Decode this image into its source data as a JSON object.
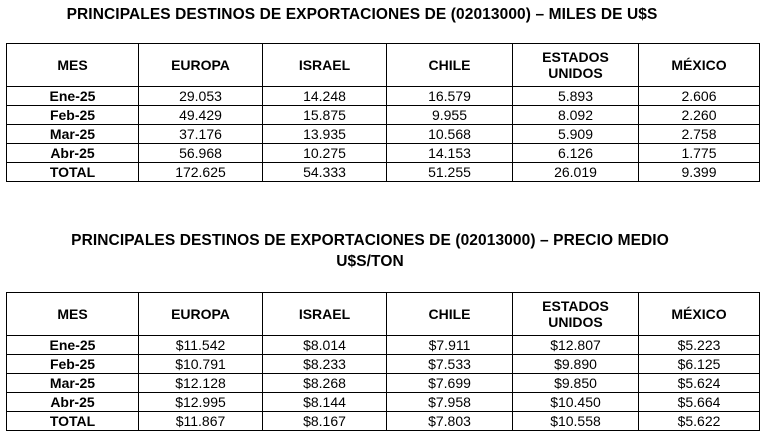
{
  "table1": {
    "title": "PRINCIPALES DESTINOS DE EXPORTACIONES DE (02013000) – MILES DE U$S",
    "headers": [
      "MES",
      "EUROPA",
      "ISRAEL",
      "CHILE",
      "ESTADOS UNIDOS",
      "MÉXICO"
    ],
    "rows": [
      [
        "Ene-25",
        "29.053",
        "14.248",
        "16.579",
        "5.893",
        "2.606"
      ],
      [
        "Feb-25",
        "49.429",
        "15.875",
        "9.955",
        "8.092",
        "2.260"
      ],
      [
        "Mar-25",
        "37.176",
        "13.935",
        "10.568",
        "5.909",
        "2.758"
      ],
      [
        "Abr-25",
        "56.968",
        "10.275",
        "14.153",
        "6.126",
        "1.775"
      ],
      [
        "TOTAL",
        "172.625",
        "54.333",
        "51.255",
        "26.019",
        "9.399"
      ]
    ]
  },
  "table2": {
    "title_line1": "PRINCIPALES DESTINOS DE EXPORTACIONES DE (02013000) – PRECIO MEDIO",
    "title_line2": "U$S/TON",
    "headers": [
      "MES",
      "EUROPA",
      "ISRAEL",
      "CHILE",
      "ESTADOS UNIDOS",
      "MÉXICO"
    ],
    "rows": [
      [
        "Ene-25",
        "$11.542",
        "$8.014",
        "$7.911",
        "$12.807",
        "$5.223"
      ],
      [
        "Feb-25",
        "$10.791",
        "$8.233",
        "$7.533",
        "$9.890",
        "$6.125"
      ],
      [
        "Mar-25",
        "$12.128",
        "$8.268",
        "$7.699",
        "$9.850",
        "$5.624"
      ],
      [
        "Abr-25",
        "$12.995",
        "$8.144",
        "$7.958",
        "$10.450",
        "$5.664"
      ],
      [
        "TOTAL",
        "$11.867",
        "$8.167",
        "$7.803",
        "$10.558",
        "$5.622"
      ]
    ]
  }
}
